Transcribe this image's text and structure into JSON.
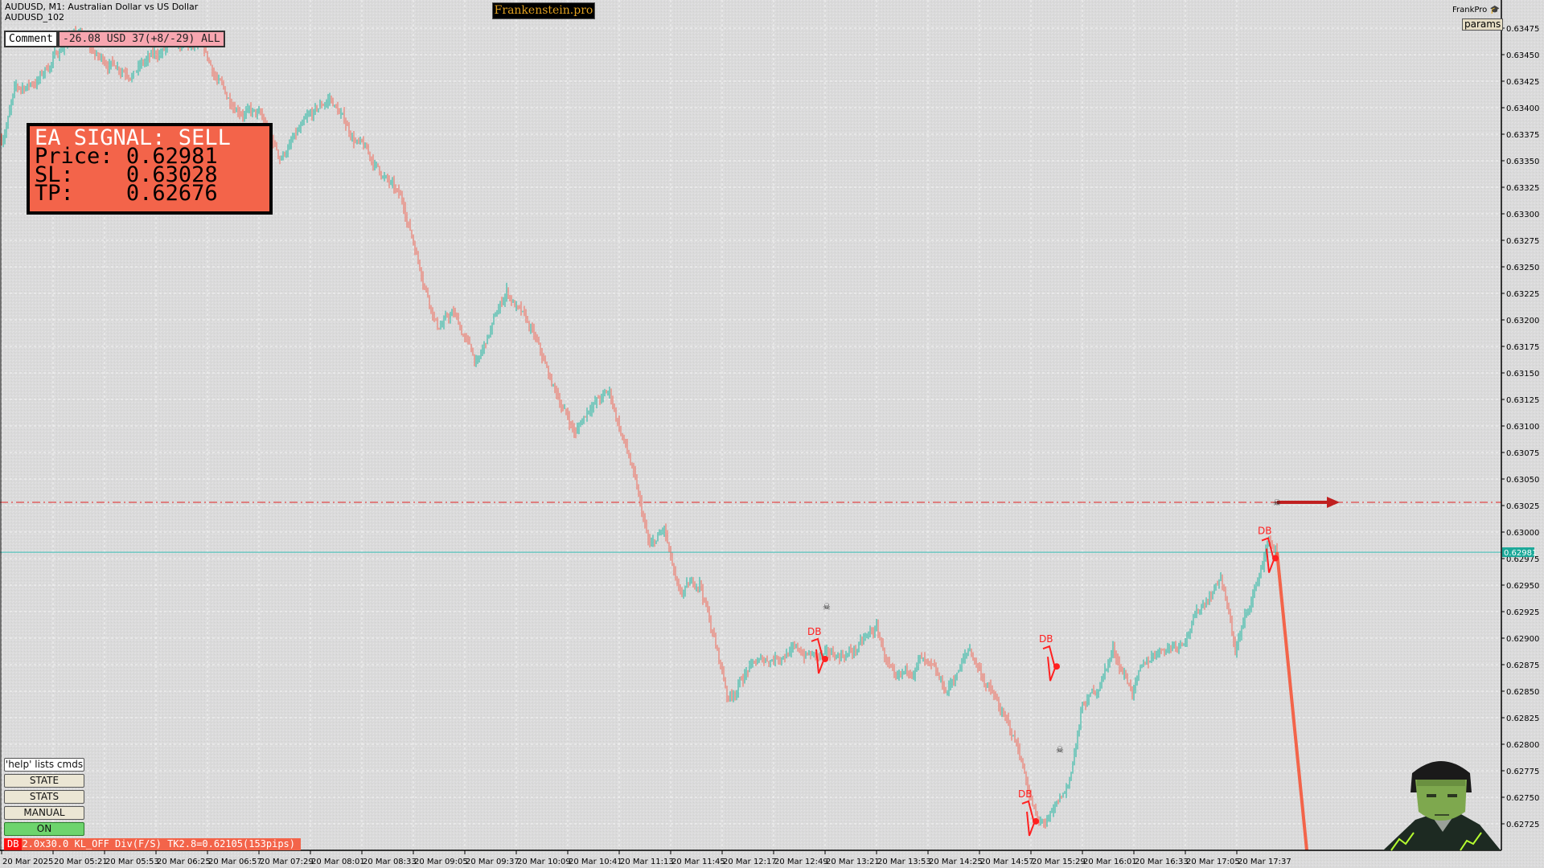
{
  "header": {
    "symbol_line": "AUDUSD, M1:  Australian Dollar vs US Dollar",
    "account_line": "AUDUSD_102",
    "brand": "Frankenstein.pro",
    "frankpro_label": "FrankPro",
    "frankpro_icon": "graduation-cap-icon",
    "params_button": "params"
  },
  "comment": {
    "label": "Comment",
    "pnl": "-26.08 USD 37(+8/-29) ALL"
  },
  "signal": {
    "title": "EA SIGNAL: SELL",
    "price_label": "Price:",
    "price": "0.62981",
    "sl_label": "SL:",
    "sl": "0.63028",
    "tp_label": "TP:",
    "tp": "0.62676"
  },
  "controls": {
    "help": "'help' lists cmds",
    "state": "STATE",
    "stats": "STATS",
    "manual": "MANUAL",
    "on": "ON"
  },
  "status_bar": {
    "tag": "DB",
    "text": "2.0x30.0 KL_OFF Div(F/S) TK2.8=0.62105(153pips)"
  },
  "colors": {
    "bull": "#1fb5a0",
    "bear": "#f06a5a",
    "bid_line": "#3cc0b8",
    "sl_line": "#e02020",
    "signal_box": "#f3644a",
    "pattern": "#ff2020"
  },
  "chart": {
    "current_price": "0.62981",
    "sl_price": 0.63028,
    "price_ticks": [
      "0.63475",
      "0.63450",
      "0.63425",
      "0.63400",
      "0.63375",
      "0.63350",
      "0.63325",
      "0.63300",
      "0.63275",
      "0.63250",
      "0.63225",
      "0.63200",
      "0.63175",
      "0.63150",
      "0.63125",
      "0.63100",
      "0.63075",
      "0.63050",
      "0.63025",
      "0.63000",
      "0.62975",
      "0.62950",
      "0.62925",
      "0.62900",
      "0.62875",
      "0.62850",
      "0.62825",
      "0.62800",
      "0.62775",
      "0.62750",
      "0.62725"
    ],
    "time_ticks": [
      "20 Mar 2025",
      "20 Mar 05:21",
      "20 Mar 05:53",
      "20 Mar 06:25",
      "20 Mar 06:57",
      "20 Mar 07:29",
      "20 Mar 08:01",
      "20 Mar 08:33",
      "20 Mar 09:05",
      "20 Mar 09:37",
      "20 Mar 10:09",
      "20 Mar 10:41",
      "20 Mar 11:13",
      "20 Mar 11:45",
      "20 Mar 12:17",
      "20 Mar 12:49",
      "20 Mar 13:21",
      "20 Mar 13:53",
      "20 Mar 14:25",
      "20 Mar 14:57",
      "20 Mar 15:29",
      "20 Mar 16:01",
      "20 Mar 16:33",
      "20 Mar 17:05",
      "20 Mar 17:37"
    ],
    "price_path": [
      [
        "04:49",
        0.6337
      ],
      [
        "04:51",
        0.63381
      ],
      [
        "04:57",
        0.63414
      ],
      [
        "05:12",
        0.63427
      ],
      [
        "05:34",
        0.63473
      ],
      [
        "05:49",
        0.63446
      ],
      [
        "06:11",
        0.63436
      ],
      [
        "06:32",
        0.63455
      ],
      [
        "06:53",
        0.63455
      ],
      [
        "07:09",
        0.63409
      ],
      [
        "07:30",
        0.6339
      ],
      [
        "07:42",
        0.63353
      ],
      [
        "07:52",
        0.63372
      ],
      [
        "08:13",
        0.63409
      ],
      [
        "08:28",
        0.63372
      ],
      [
        "08:47",
        0.63335
      ],
      [
        "08:59",
        0.63307
      ],
      [
        "09:11",
        0.63242
      ],
      [
        "09:20",
        0.63195
      ],
      [
        "09:30",
        0.63205
      ],
      [
        "09:45",
        0.63158
      ],
      [
        "10:03",
        0.63228
      ],
      [
        "10:19",
        0.63186
      ],
      [
        "10:31",
        0.63139
      ],
      [
        "10:46",
        0.63093
      ],
      [
        "10:55",
        0.63121
      ],
      [
        "11:07",
        0.6313
      ],
      [
        "11:20",
        0.63065
      ],
      [
        "11:32",
        0.62982
      ],
      [
        "11:41",
        0.63001
      ],
      [
        "11:50",
        0.62936
      ],
      [
        "12:03",
        0.62955
      ],
      [
        "12:21",
        0.62843
      ],
      [
        "12:33",
        0.62871
      ],
      [
        "12:58",
        0.62889
      ],
      [
        "13:22",
        0.6288
      ],
      [
        "13:40",
        0.62889
      ],
      [
        "13:53",
        0.62908
      ],
      [
        "14:05",
        0.62852
      ],
      [
        "14:20",
        0.6288
      ],
      [
        "14:36",
        0.62848
      ],
      [
        "14:51",
        0.62889
      ],
      [
        "15:09",
        0.62834
      ],
      [
        "15:21",
        0.62796
      ],
      [
        "15:34",
        0.62722
      ],
      [
        "15:43",
        0.62732
      ],
      [
        "15:52",
        0.62759
      ],
      [
        "16:01",
        0.62834
      ],
      [
        "16:10",
        0.62852
      ],
      [
        "16:20",
        0.62889
      ],
      [
        "16:32",
        0.62852
      ],
      [
        "16:47",
        0.62889
      ],
      [
        "17:02",
        0.62898
      ],
      [
        "17:27",
        0.62959
      ],
      [
        "17:36",
        0.62889
      ],
      [
        "17:48",
        0.62945
      ],
      [
        "17:57",
        0.62992
      ],
      [
        "18:02",
        0.62981
      ]
    ],
    "patterns": [
      {
        "label": "DB",
        "time": "13:14",
        "price": 0.62897
      },
      {
        "label": "DB",
        "time": "15:25",
        "price": 0.62744
      },
      {
        "label": "DB",
        "time": "15:38",
        "price": 0.6289
      },
      {
        "label": "DB",
        "time": "17:54",
        "price": 0.62992
      }
    ],
    "skulls": [
      {
        "time": "13:22",
        "price": 0.6293
      },
      {
        "time": "15:47",
        "price": 0.62795
      },
      {
        "time": "18:02",
        "price": 0.63028
      }
    ]
  }
}
